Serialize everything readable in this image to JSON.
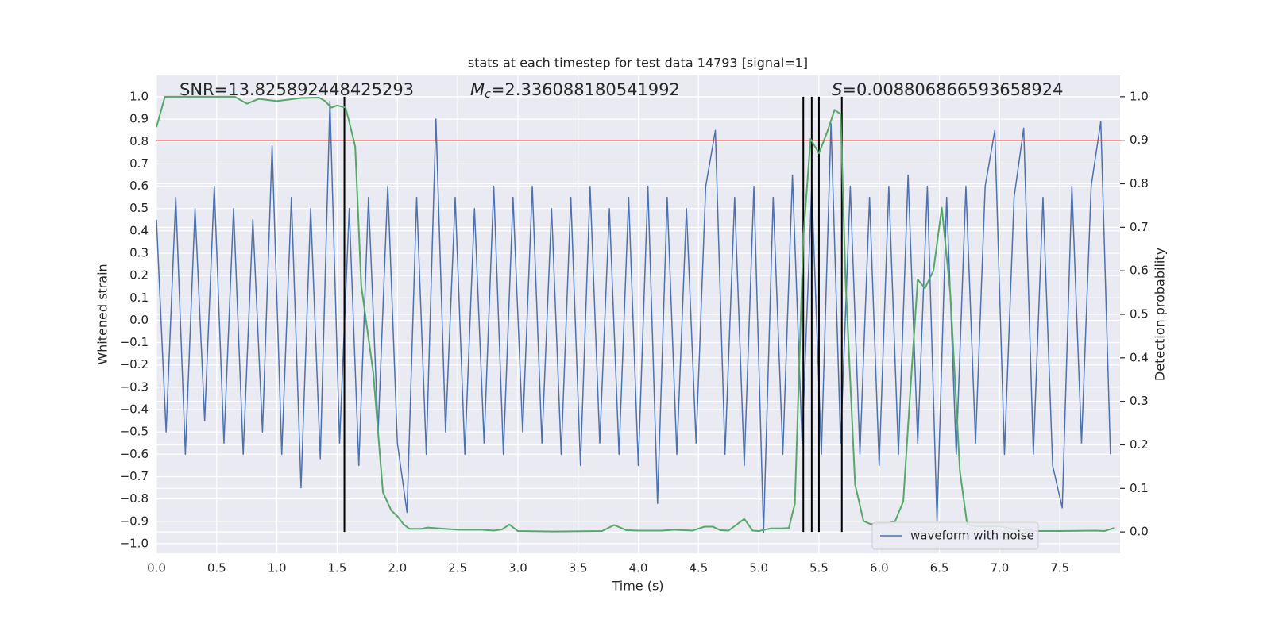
{
  "chart_data": {
    "type": "line",
    "title": "stats at each timestep for test data 14793 [signal=1]",
    "xlabel": "Time (s)",
    "ylabel": "Whitened strain",
    "y2label": "Detection probability",
    "xlim": [
      0,
      8
    ],
    "ylim": [
      -1.043,
      1.096
    ],
    "y2lim": [
      -0.049,
      1.049
    ],
    "xticks": [
      {
        "value": 0,
        "label": "0.0"
      },
      0.5,
      {
        "value": 1,
        "label": "1.0"
      },
      1.5,
      {
        "value": 2,
        "label": "2.0"
      },
      2.5,
      {
        "value": 3,
        "label": "3.0"
      },
      3.5,
      {
        "value": 4,
        "label": "4.0"
      },
      4.5,
      {
        "value": 5,
        "label": "5.0"
      },
      5.5,
      {
        "value": 6,
        "label": "6.0"
      },
      6.5,
      {
        "value": 7,
        "label": "7.0"
      },
      7.5
    ],
    "yticks": [
      {
        "value": -1,
        "label": "−1.0"
      },
      {
        "value": -0.9,
        "label": "−0.9"
      },
      {
        "value": -0.8,
        "label": "−0.8"
      },
      {
        "value": -0.7,
        "label": "−0.7"
      },
      {
        "value": -0.6,
        "label": "−0.6"
      },
      {
        "value": -0.5,
        "label": "−0.5"
      },
      {
        "value": -0.4,
        "label": "−0.4"
      },
      {
        "value": -0.3,
        "label": "−0.3"
      },
      {
        "value": -0.2,
        "label": "−0.2"
      },
      {
        "value": -0.1,
        "label": "−0.1"
      },
      {
        "value": 0,
        "label": "0.0"
      },
      0.1,
      0.2,
      0.3,
      0.4,
      0.5,
      0.6,
      0.7,
      0.8,
      0.9,
      {
        "value": 1,
        "label": "1.0"
      }
    ],
    "y2ticks": [
      {
        "value": 0,
        "label": "0.0"
      },
      0.1,
      0.2,
      0.3,
      0.4,
      0.5,
      0.6,
      0.7,
      0.8,
      0.9,
      {
        "value": 1,
        "label": "1.0"
      }
    ],
    "grid": true,
    "legend": "lower right",
    "series": [
      {
        "name": "waveform with noise",
        "color": "#4c72b0",
        "x": [
          0,
          0.08,
          0.16,
          0.24,
          0.32,
          0.4,
          0.48,
          0.56,
          0.64,
          0.72,
          0.8,
          0.88,
          0.96,
          1.04,
          1.12,
          1.2,
          1.28,
          1.36,
          1.44,
          1.52,
          1.6,
          1.68,
          1.76,
          1.84,
          1.92,
          2.0,
          2.08,
          2.16,
          2.24,
          2.32,
          2.4,
          2.48,
          2.56,
          2.64,
          2.72,
          2.8,
          2.88,
          2.96,
          3.04,
          3.12,
          3.2,
          3.28,
          3.36,
          3.44,
          3.52,
          3.6,
          3.68,
          3.76,
          3.84,
          3.92,
          4.0,
          4.08,
          4.16,
          4.24,
          4.32,
          4.4,
          4.48,
          4.56,
          4.64,
          4.72,
          4.8,
          4.88,
          4.96,
          5.04,
          5.12,
          5.2,
          5.28,
          5.36,
          5.44,
          5.52,
          5.6,
          5.68,
          5.76,
          5.84,
          5.92,
          6.0,
          6.08,
          6.16,
          6.24,
          6.32,
          6.4,
          6.48,
          6.56,
          6.64,
          6.72,
          6.8,
          6.88,
          6.96,
          7.04,
          7.12,
          7.2,
          7.28,
          7.36,
          7.44,
          7.52,
          7.6,
          7.68,
          7.76,
          7.84,
          7.92
        ],
        "values": [
          0.45,
          -0.5,
          0.55,
          -0.6,
          0.5,
          -0.45,
          0.6,
          -0.55,
          0.5,
          -0.6,
          0.45,
          -0.5,
          0.78,
          -0.6,
          0.55,
          -0.75,
          0.5,
          -0.62,
          0.98,
          -0.55,
          0.5,
          -0.65,
          0.55,
          -0.5,
          0.6,
          -0.55,
          -0.86,
          0.55,
          -0.6,
          0.9,
          -0.5,
          0.55,
          -0.6,
          0.5,
          -0.55,
          0.6,
          -0.6,
          0.55,
          -0.5,
          0.6,
          -0.55,
          0.5,
          -0.6,
          0.55,
          -0.65,
          0.6,
          -0.55,
          0.5,
          -0.6,
          0.55,
          -0.65,
          0.6,
          -0.82,
          0.55,
          -0.6,
          0.5,
          -0.55,
          0.6,
          0.85,
          -0.6,
          0.55,
          -0.65,
          0.6,
          -0.95,
          0.55,
          -0.6,
          0.65,
          -0.55,
          0.6,
          -0.6,
          0.88,
          -0.55,
          0.6,
          -0.6,
          0.55,
          -0.65,
          0.6,
          -0.6,
          0.65,
          -0.55,
          0.6,
          -0.9,
          0.55,
          -0.6,
          0.6,
          -0.55,
          0.6,
          0.85,
          -0.6,
          0.55,
          0.86,
          -0.6,
          0.55,
          -0.65,
          -0.84,
          0.6,
          -0.55,
          0.6,
          0.89,
          -0.6
        ]
      },
      {
        "color": "#55a868",
        "axis": "y2",
        "x": [
          0,
          0.07,
          0.2,
          0.4,
          0.65,
          0.75,
          0.85,
          1.0,
          1.2,
          1.35,
          1.4,
          1.45,
          1.5,
          1.57,
          1.62,
          1.65,
          1.7,
          1.8,
          1.88,
          1.95,
          2.0,
          2.05,
          2.1,
          2.2,
          2.25,
          2.35,
          2.5,
          2.7,
          2.8,
          2.87,
          2.93,
          3.0,
          3.3,
          3.7,
          3.8,
          3.9,
          4.0,
          4.2,
          4.3,
          4.45,
          4.55,
          4.62,
          4.68,
          4.75,
          4.88,
          4.95,
          5.0,
          5.1,
          5.18,
          5.25,
          5.3,
          5.37,
          5.43,
          5.5,
          5.57,
          5.63,
          5.68,
          5.72,
          5.8,
          5.87,
          5.93,
          6.05,
          6.13,
          6.2,
          6.26,
          6.32,
          6.38,
          6.45,
          6.52,
          6.59,
          6.67,
          6.73,
          6.8,
          7.0,
          7.1,
          7.3,
          7.5,
          7.8,
          7.87,
          7.95
        ],
        "values": [
          0.93,
          1.0,
          1.0,
          1.0,
          1.0,
          0.984,
          0.995,
          0.99,
          0.997,
          0.998,
          0.99,
          0.975,
          0.98,
          0.975,
          0.92,
          0.885,
          0.566,
          0.365,
          0.091,
          0.049,
          0.036,
          0.018,
          0.007,
          0.007,
          0.01,
          0.008,
          0.005,
          0.005,
          0.003,
          0.006,
          0.017,
          0.002,
          0.001,
          0.002,
          0.016,
          0.004,
          0.003,
          0.003,
          0.005,
          0.003,
          0.012,
          0.012,
          0.004,
          0.003,
          0.03,
          0.003,
          0.002,
          0.008,
          0.008,
          0.009,
          0.065,
          0.675,
          0.903,
          0.87,
          0.92,
          0.97,
          0.96,
          0.584,
          0.109,
          0.025,
          0.018,
          0.02,
          0.023,
          0.07,
          0.33,
          0.58,
          0.56,
          0.6,
          0.745,
          0.55,
          0.14,
          0.018,
          0.013,
          0.013,
          0.007,
          0.002,
          0.002,
          0.003,
          0.002,
          0.009
        ]
      }
    ],
    "hline": {
      "value": 0.9,
      "axis": "y2",
      "color": "#c44e52"
    },
    "vlines": {
      "x": [
        1.56,
        5.37,
        5.44,
        5.5,
        5.69
      ],
      "ymin": 0,
      "ymax": 1,
      "axis": "y2",
      "color": "#000000"
    },
    "annotations": [
      {
        "text": "SNR=13.825892448425293"
      },
      {
        "symbol": "M",
        "subscript": "c",
        "text": "=2.336088180541992"
      },
      {
        "symbol": "S",
        "text": "=0.008806866593658924"
      }
    ]
  }
}
